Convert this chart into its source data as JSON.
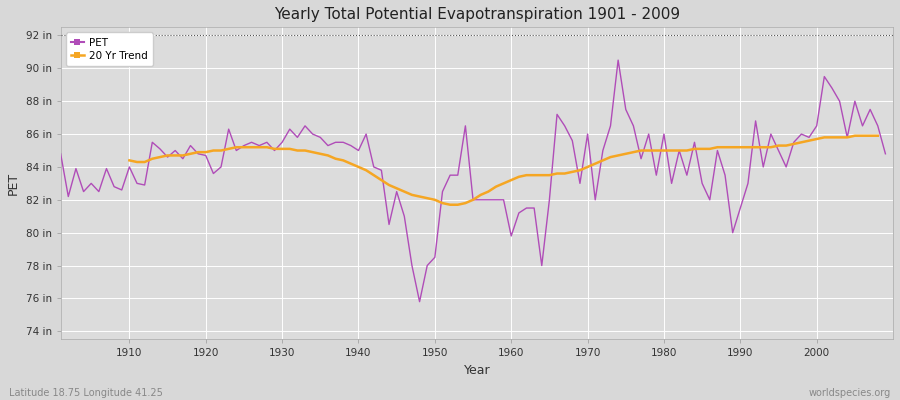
{
  "title": "Yearly Total Potential Evapotranspiration 1901 - 2009",
  "xlabel": "Year",
  "ylabel": "PET",
  "subtitle_left": "Latitude 18.75 Longitude 41.25",
  "subtitle_right": "worldspecies.org",
  "pet_color": "#b04db8",
  "trend_color": "#f5a623",
  "plot_bg_color": "#dcdcdc",
  "fig_bg_color": "#d8d8d8",
  "ylim": [
    73.5,
    92.5
  ],
  "yticks": [
    74,
    76,
    78,
    80,
    82,
    84,
    86,
    88,
    90,
    92
  ],
  "ytick_labels": [
    "74 in",
    "76 in",
    "78 in",
    "80 in",
    "82 in",
    "84 in",
    "86 in",
    "88 in",
    "90 in",
    "92 in"
  ],
  "hline_y": 92,
  "xticks": [
    1910,
    1920,
    1930,
    1940,
    1950,
    1960,
    1970,
    1980,
    1990,
    2000
  ],
  "xlim": [
    1901,
    2010
  ],
  "years": [
    1901,
    1902,
    1903,
    1904,
    1905,
    1906,
    1907,
    1908,
    1909,
    1910,
    1911,
    1912,
    1913,
    1914,
    1915,
    1916,
    1917,
    1918,
    1919,
    1920,
    1921,
    1922,
    1923,
    1924,
    1925,
    1926,
    1927,
    1928,
    1929,
    1930,
    1931,
    1932,
    1933,
    1934,
    1935,
    1936,
    1937,
    1938,
    1939,
    1940,
    1941,
    1942,
    1943,
    1944,
    1945,
    1946,
    1947,
    1948,
    1949,
    1950,
    1951,
    1952,
    1953,
    1954,
    1955,
    1956,
    1957,
    1958,
    1959,
    1960,
    1961,
    1962,
    1963,
    1964,
    1965,
    1966,
    1967,
    1968,
    1969,
    1970,
    1971,
    1972,
    1973,
    1974,
    1975,
    1976,
    1977,
    1978,
    1979,
    1980,
    1981,
    1982,
    1983,
    1984,
    1985,
    1986,
    1987,
    1988,
    1989,
    1990,
    1991,
    1992,
    1993,
    1994,
    1995,
    1996,
    1997,
    1998,
    1999,
    2000,
    2001,
    2002,
    2003,
    2004,
    2005,
    2006,
    2007,
    2008,
    2009
  ],
  "pet_values": [
    84.8,
    82.2,
    83.9,
    82.5,
    83.0,
    82.5,
    83.9,
    82.8,
    82.6,
    84.0,
    83.0,
    82.9,
    85.5,
    85.1,
    84.6,
    85.0,
    84.5,
    85.3,
    84.8,
    84.7,
    83.6,
    84.0,
    86.3,
    85.0,
    85.3,
    85.5,
    85.3,
    85.5,
    85.0,
    85.5,
    86.3,
    85.8,
    86.5,
    86.0,
    85.8,
    85.3,
    85.5,
    85.5,
    85.3,
    85.0,
    86.0,
    84.0,
    83.8,
    80.5,
    82.5,
    81.0,
    78.0,
    75.8,
    78.0,
    78.5,
    82.5,
    83.5,
    83.5,
    86.5,
    82.0,
    82.0,
    82.0,
    82.0,
    82.0,
    79.8,
    81.2,
    81.5,
    81.5,
    78.0,
    82.0,
    87.2,
    86.5,
    85.6,
    83.0,
    86.0,
    82.0,
    85.0,
    86.5,
    90.5,
    87.5,
    86.5,
    84.5,
    86.0,
    83.5,
    86.0,
    83.0,
    85.0,
    83.5,
    85.5,
    83.0,
    82.0,
    85.0,
    83.5,
    80.0,
    81.5,
    83.0,
    86.8,
    84.0,
    86.0,
    85.0,
    84.0,
    85.5,
    86.0,
    85.8,
    86.5,
    89.5,
    88.8,
    88.0,
    85.8,
    88.0,
    86.5,
    87.5,
    86.5,
    84.8
  ],
  "trend_values": [
    null,
    null,
    null,
    null,
    null,
    null,
    null,
    null,
    null,
    84.4,
    84.3,
    84.3,
    84.5,
    84.6,
    84.7,
    84.7,
    84.7,
    84.8,
    84.9,
    84.9,
    85.0,
    85.0,
    85.1,
    85.2,
    85.2,
    85.2,
    85.2,
    85.2,
    85.1,
    85.1,
    85.1,
    85.0,
    85.0,
    84.9,
    84.8,
    84.7,
    84.5,
    84.4,
    84.2,
    84.0,
    83.8,
    83.5,
    83.2,
    82.9,
    82.7,
    82.5,
    82.3,
    82.2,
    82.1,
    82.0,
    81.8,
    81.7,
    81.7,
    81.8,
    82.0,
    82.3,
    82.5,
    82.8,
    83.0,
    83.2,
    83.4,
    83.5,
    83.5,
    83.5,
    83.5,
    83.6,
    83.6,
    83.7,
    83.8,
    84.0,
    84.2,
    84.4,
    84.6,
    84.7,
    84.8,
    84.9,
    85.0,
    85.0,
    85.0,
    85.0,
    85.0,
    85.0,
    85.0,
    85.1,
    85.1,
    85.1,
    85.2,
    85.2,
    85.2,
    85.2,
    85.2,
    85.2,
    85.2,
    85.2,
    85.3,
    85.3,
    85.4,
    85.5,
    85.6,
    85.7,
    85.8,
    85.8,
    85.8,
    85.8,
    85.9,
    85.9,
    85.9,
    85.9,
    null
  ]
}
